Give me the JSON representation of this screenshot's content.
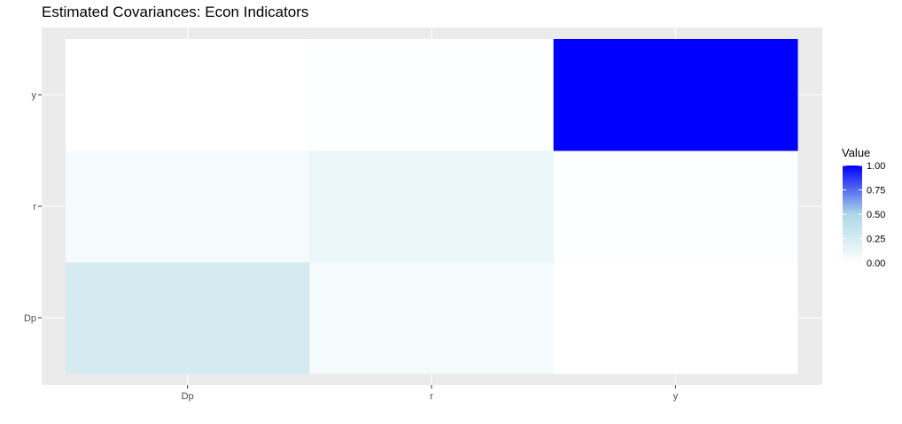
{
  "chart_data": {
    "type": "heatmap",
    "title": "Estimated Covariances: Econ Indicators",
    "xlabel": "",
    "ylabel": "",
    "x_categories": [
      "Dp",
      "r",
      "y"
    ],
    "y_categories": [
      "Dp",
      "r",
      "y"
    ],
    "cells": [
      {
        "x": "Dp",
        "y": "Dp",
        "value": 0.26
      },
      {
        "x": "r",
        "y": "Dp",
        "value": 0.06
      },
      {
        "x": "y",
        "y": "Dp",
        "value": 0.0
      },
      {
        "x": "Dp",
        "y": "r",
        "value": 0.06
      },
      {
        "x": "r",
        "y": "r",
        "value": 0.12
      },
      {
        "x": "y",
        "y": "r",
        "value": 0.01
      },
      {
        "x": "Dp",
        "y": "y",
        "value": 0.0
      },
      {
        "x": "r",
        "y": "y",
        "value": 0.01
      },
      {
        "x": "y",
        "y": "y",
        "value": 1.0
      }
    ],
    "legend": {
      "title": "Value",
      "position": "right",
      "ticks": [
        0.0,
        0.25,
        0.5,
        0.75,
        1.0
      ],
      "tick_labels": [
        "0.00",
        "0.25",
        "0.50",
        "0.75",
        "1.00"
      ],
      "range": [
        0,
        1
      ]
    },
    "colors": {
      "low": "#ffffff",
      "mid": "#add8e6",
      "high": "#0000ff",
      "panel": "#ebebeb",
      "grid": "#ffffff"
    },
    "grid": true
  }
}
